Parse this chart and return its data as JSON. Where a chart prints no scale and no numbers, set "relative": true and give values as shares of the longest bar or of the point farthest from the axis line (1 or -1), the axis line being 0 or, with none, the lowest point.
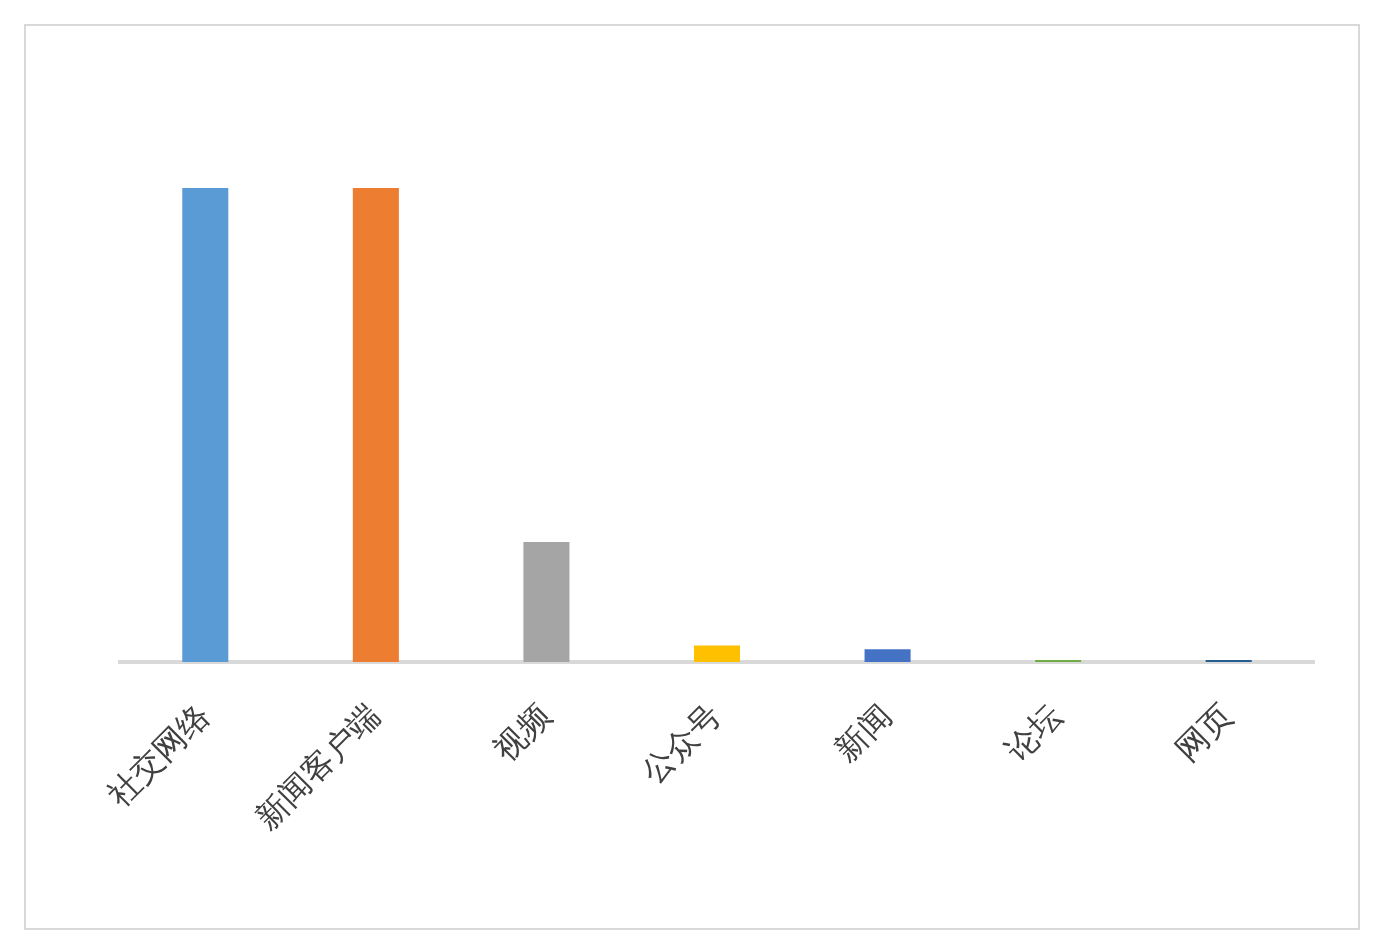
{
  "chart_data": {
    "type": "bar",
    "categories": [
      "社交网络",
      "新闻客户端",
      "视频",
      "公众号",
      "新闻",
      "论坛",
      "网页"
    ],
    "values": [
      1,
      1,
      0.253,
      0.035,
      0.027,
      0.004,
      0.004
    ],
    "colors": [
      "#5b9bd5",
      "#ed7d31",
      "#a5a5a5",
      "#ffc000",
      "#4472c4",
      "#70ad47",
      "#255e91"
    ],
    "relative": true
  }
}
